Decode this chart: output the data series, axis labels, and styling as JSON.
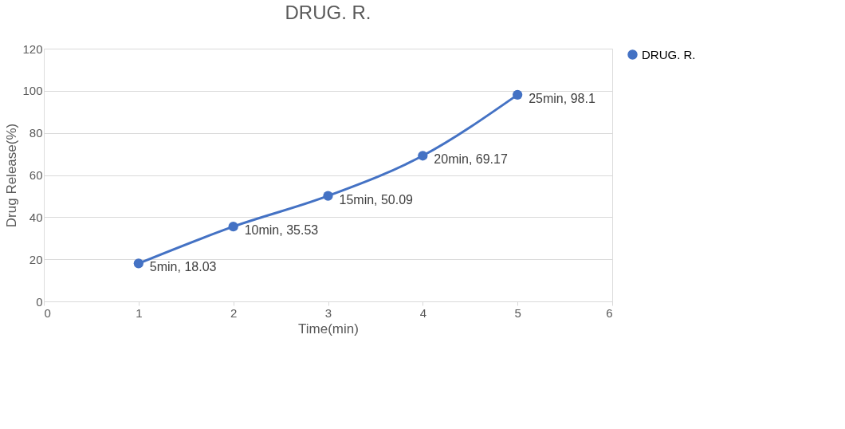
{
  "chart_data": {
    "type": "line",
    "title": "DRUG. R.",
    "xlabel": "Time(min)",
    "ylabel": "Drug Release(%)",
    "x": [
      1,
      2,
      3,
      4,
      5
    ],
    "series": [
      {
        "name": "DRUG. R.",
        "color": "#4472c4",
        "values": [
          18.03,
          35.53,
          50.09,
          69.17,
          98.1
        ],
        "value_labels": [
          "5min, 18.03",
          "10min, 35.53",
          "15min, 50.09",
          "20min, 69.17",
          "25min, 98.1"
        ]
      }
    ],
    "xlim": [
      0,
      6
    ],
    "xticks": [
      0,
      1,
      2,
      3,
      4,
      5,
      6
    ],
    "ylim": [
      0,
      120
    ],
    "yticks": [
      0,
      20,
      40,
      60,
      80,
      100,
      120
    ],
    "grid": "y",
    "legend": "right",
    "marker": "circle",
    "line_style": "solid"
  }
}
